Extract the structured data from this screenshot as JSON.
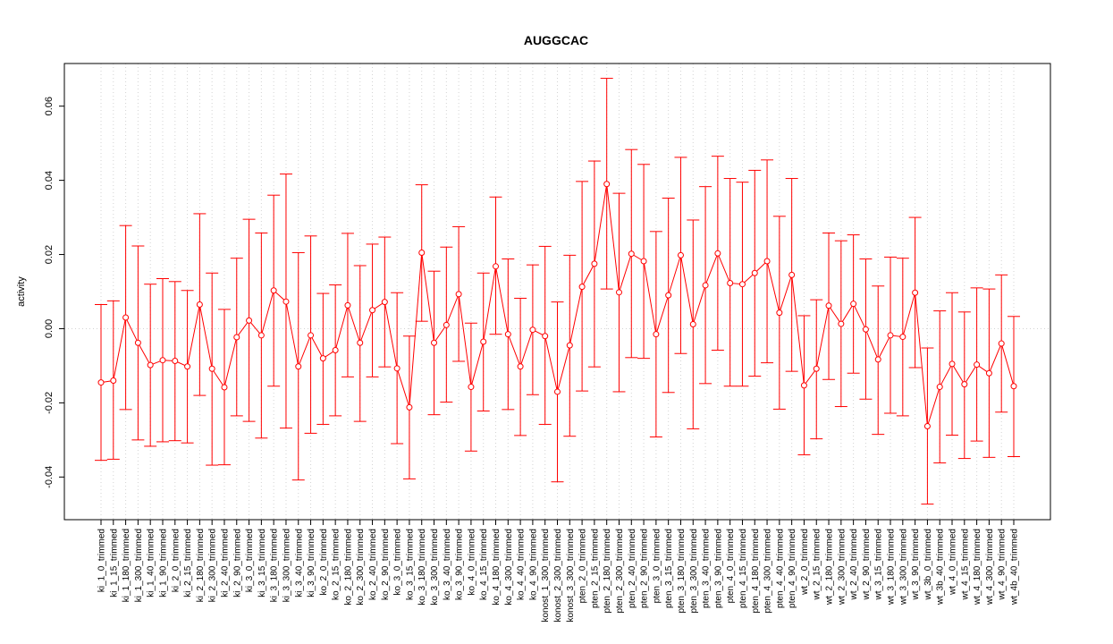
{
  "chart_data": {
    "type": "line",
    "title": "AUGGCAC",
    "ylabel": "activity",
    "xlabel": "",
    "ylim": [
      -0.0515,
      0.0715
    ],
    "yticks": [
      -0.04,
      -0.02,
      0.0,
      0.02,
      0.04,
      0.06
    ],
    "ytick_labels": [
      "-0.04",
      "-0.02",
      "0.00",
      "0.02",
      "0.04",
      "0.06"
    ],
    "grid": "vertical dotted lines at each category; dotted horizontal line at 0",
    "color": "#ff0000",
    "categories": [
      "ki_1_0_trimmed",
      "ki_1_15_trimmed",
      "ki_1_180_trimmed",
      "ki_1_300_trimmed",
      "ki_1_40_trimmed",
      "ki_1_90_trimmed",
      "ki_2_0_trimmed",
      "ki_2_15_trimmed",
      "ki_2_180_trimmed",
      "ki_2_300_trimmed",
      "ki_2_40_trimmed",
      "ki_2_90_trimmed",
      "ki_3_0_trimmed",
      "ki_3_15_trimmed",
      "ki_3_180_trimmed",
      "ki_3_300_trimmed",
      "ki_3_40_trimmed",
      "ki_3_90_trimmed",
      "ko_2_0_trimmed",
      "ko_2_15_trimmed",
      "ko_2_180_trimmed",
      "ko_2_300_trimmed",
      "ko_2_40_trimmed",
      "ko_2_90_trimmed",
      "ko_3_0_trimmed",
      "ko_3_15_trimmed",
      "ko_3_180_trimmed",
      "ko_3_300_trimmed",
      "ko_3_40_trimmed",
      "ko_3_90_trimmed",
      "ko_4_0_trimmed",
      "ko_4_15_trimmed",
      "ko_4_180_trimmed",
      "ko_4_300_trimmed",
      "ko_4_40_trimmed",
      "ko_4_90_trimmed",
      "konost_1_300_trimmed",
      "konost_2_300_trimmed",
      "konost_3_300_trimmed",
      "pten_2_0_trimmed",
      "pten_2_15_trimmed",
      "pten_2_180_trimmed",
      "pten_2_300_trimmed",
      "pten_2_40_trimmed",
      "pten_2_90_trimmed",
      "pten_3_0_trimmed",
      "pten_3_15_trimmed",
      "pten_3_180_trimmed",
      "pten_3_300_trimmed",
      "pten_3_40_trimmed",
      "pten_3_90_trimmed",
      "pten_4_0_trimmed",
      "pten_4_15_trimmed",
      "pten_4_180_trimmed",
      "pten_4_300_trimmed",
      "pten_4_40_trimmed",
      "pten_4_90_trimmed",
      "wt_2_0_trimmed",
      "wt_2_15_trimmed",
      "wt_2_180_trimmed",
      "wt_2_300_trimmed",
      "wt_2_40_trimmed",
      "wt_2_90_trimmed",
      "wt_3_15_trimmed",
      "wt_3_180_trimmed",
      "wt_3_300_trimmed",
      "wt_3_90_trimmed",
      "wt_3b_0_trimmed",
      "wt_3b_40_trimmed",
      "wt_4_0_trimmed",
      "wt_4_15_trimmed",
      "wt_4_180_trimmed",
      "wt_4_300_trimmed",
      "wt_4_90_trimmed",
      "wt_4b_40_trimmed"
    ],
    "series": [
      {
        "values": [
          -0.0145,
          -0.014,
          0.003,
          -0.0038,
          -0.0098,
          -0.0085,
          -0.0087,
          -0.0102,
          0.0065,
          -0.0108,
          -0.0158,
          -0.0023,
          0.0022,
          -0.0018,
          0.0103,
          0.0073,
          -0.0102,
          -0.0018,
          -0.008,
          -0.0058,
          0.0063,
          -0.0038,
          0.005,
          0.0072,
          -0.0107,
          -0.0212,
          0.0205,
          -0.0038,
          0.001,
          0.0093,
          -0.0157,
          -0.0035,
          0.0168,
          -0.0015,
          -0.0102,
          -0.0003,
          -0.002,
          -0.017,
          -0.0045,
          0.0113,
          0.0175,
          0.039,
          0.0098,
          0.0202,
          0.0182,
          -0.0015,
          0.009,
          0.0198,
          0.0012,
          0.0117,
          0.0203,
          0.0123,
          0.012,
          0.015,
          0.0182,
          0.0043,
          0.0145,
          -0.0153,
          -0.0108,
          0.0062,
          0.0013,
          0.0067,
          -0.0002,
          -0.0083,
          -0.0018,
          -0.0022,
          0.0097,
          -0.0263,
          -0.0157,
          -0.0095,
          -0.015,
          -0.0097,
          -0.012,
          -0.004,
          -0.0155
        ],
        "upper": [
          0.0065,
          0.0075,
          0.0278,
          0.0223,
          0.012,
          0.0135,
          0.0127,
          0.0103,
          0.031,
          0.015,
          0.0052,
          0.019,
          0.0295,
          0.0258,
          0.036,
          0.0417,
          0.0205,
          0.025,
          0.0095,
          0.0118,
          0.0257,
          0.017,
          0.0228,
          0.0247,
          0.0097,
          -0.002,
          0.0388,
          0.0155,
          0.022,
          0.0275,
          0.0015,
          0.015,
          0.0355,
          0.0188,
          0.0082,
          0.0172,
          0.0222,
          0.0072,
          0.0198,
          0.0397,
          0.0452,
          0.0675,
          0.0365,
          0.0483,
          0.0443,
          0.0262,
          0.0352,
          0.0462,
          0.0293,
          0.0383,
          0.0465,
          0.0405,
          0.0395,
          0.0427,
          0.0455,
          0.0303,
          0.0405,
          0.0035,
          0.0078,
          0.0258,
          0.0237,
          0.0253,
          0.0188,
          0.0115,
          0.0193,
          0.019,
          0.03,
          -0.0052,
          0.0048,
          0.0097,
          0.0045,
          0.011,
          0.0107,
          0.0145,
          0.0033
        ],
        "lower": [
          -0.0355,
          -0.0352,
          -0.0218,
          -0.03,
          -0.0317,
          -0.0305,
          -0.0302,
          -0.0308,
          -0.018,
          -0.0368,
          -0.0367,
          -0.0235,
          -0.025,
          -0.0295,
          -0.0155,
          -0.0268,
          -0.0408,
          -0.0282,
          -0.0258,
          -0.0235,
          -0.013,
          -0.025,
          -0.013,
          -0.0103,
          -0.031,
          -0.0405,
          0.002,
          -0.0232,
          -0.0198,
          -0.0088,
          -0.033,
          -0.0222,
          -0.0015,
          -0.0218,
          -0.0288,
          -0.0178,
          -0.0258,
          -0.0413,
          -0.029,
          -0.0168,
          -0.0103,
          0.0107,
          -0.017,
          -0.0078,
          -0.008,
          -0.0292,
          -0.0172,
          -0.0067,
          -0.027,
          -0.0148,
          -0.0058,
          -0.0155,
          -0.0155,
          -0.0128,
          -0.0092,
          -0.0217,
          -0.0115,
          -0.034,
          -0.0297,
          -0.0137,
          -0.021,
          -0.012,
          -0.019,
          -0.0285,
          -0.0228,
          -0.0235,
          -0.0105,
          -0.0473,
          -0.0362,
          -0.0287,
          -0.035,
          -0.0303,
          -0.0347,
          -0.0225,
          -0.0345
        ]
      }
    ]
  }
}
